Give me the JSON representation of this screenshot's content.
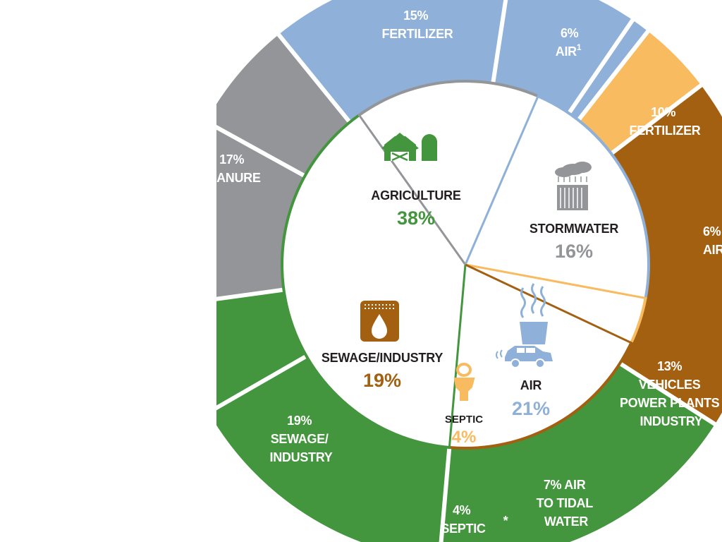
{
  "chart_data": {
    "type": "pie",
    "inner_ring": [
      {
        "name": "AGRICULTURE",
        "pct_label": "38%",
        "value": 38,
        "color": "#43963d"
      },
      {
        "name": "STORMWATER",
        "pct_label": "16%",
        "value": 16,
        "color": "#939598"
      },
      {
        "name": "AIR",
        "pct_label": "21%",
        "value": 21,
        "color": "#8fb0d8"
      },
      {
        "name": "SEPTIC",
        "pct_label": "4%",
        "value": 4,
        "color": "#f8bb60"
      },
      {
        "name": "SEWAGE/INDUSTRY",
        "pct_label": "19%",
        "value": 19,
        "color": "#a36010"
      }
    ],
    "outer_ring": [
      {
        "group": "AGRICULTURE",
        "lines": [
          "15%",
          "FERTILIZER"
        ],
        "value": 15
      },
      {
        "group": "AGRICULTURE",
        "lines": [
          "6%",
          "AIR"
        ],
        "superscript": "1",
        "value": 6
      },
      {
        "group": "STORMWATER",
        "lines": [
          "10%",
          "FERTILIZER"
        ],
        "value": 10
      },
      {
        "group": "STORMWATER",
        "lines": [
          "6%",
          "AIR"
        ],
        "value": 6
      },
      {
        "group": "AIR",
        "lines": [
          "13%",
          "VEHICLES",
          "POWER PLANTS",
          "INDUSTRY"
        ],
        "value": 13
      },
      {
        "group": "AIR",
        "lines": [
          "7% AIR",
          "TO TIDAL",
          "WATER"
        ],
        "value": 7
      },
      {
        "group": "AIR",
        "lines": [
          "*"
        ],
        "value": 1
      },
      {
        "group": "SEPTIC",
        "lines": [
          "4%",
          "SEPTIC"
        ],
        "value": 4
      },
      {
        "group": "SEWAGE/INDUSTRY",
        "lines": [
          "19%",
          "SEWAGE/",
          "INDUSTRY"
        ],
        "value": 19
      },
      {
        "group": "AGRICULTURE",
        "lines": [
          "17%",
          "MANURE"
        ],
        "value": 17
      }
    ]
  }
}
